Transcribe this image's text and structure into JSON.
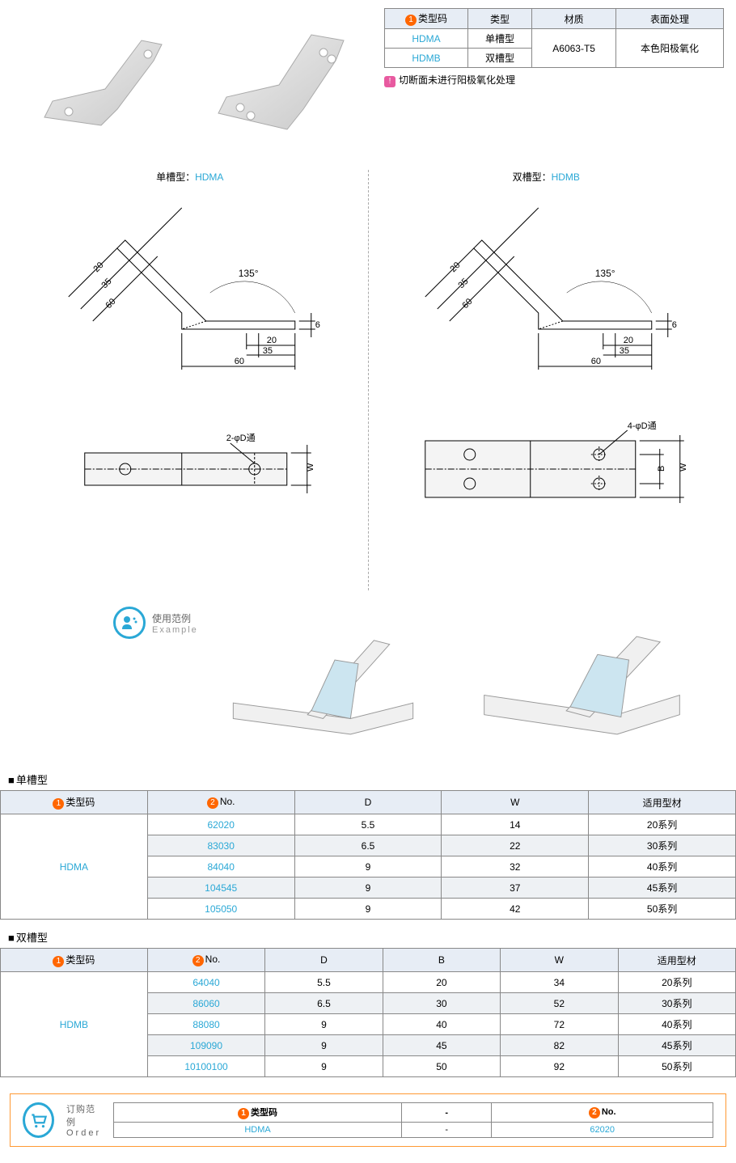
{
  "specTable": {
    "headers": [
      "类型码",
      "类型",
      "材质",
      "表面处理"
    ],
    "rows": [
      {
        "code": "HDMA",
        "type": "单槽型",
        "material": "A6063-T5",
        "surface": "本色阳极氧化"
      },
      {
        "code": "HDMB",
        "type": "双槽型"
      }
    ]
  },
  "note": "切断面未进行阳极氧化处理",
  "diagramLeft": {
    "title_prefix": "单槽型：",
    "title_code": "HDMA",
    "angle": "135°",
    "dims_angled": [
      "20",
      "35",
      "60"
    ],
    "dims_flat": [
      "20",
      "35",
      "60"
    ],
    "thickness": "6",
    "hole_label": "2-φD通",
    "width_label": "W"
  },
  "diagramRight": {
    "title_prefix": "双槽型：",
    "title_code": "HDMB",
    "angle": "135°",
    "dims_angled": [
      "20",
      "35",
      "60"
    ],
    "dims_flat": [
      "20",
      "35",
      "60"
    ],
    "thickness": "6",
    "hole_label": "4-φD通",
    "width_label": "W",
    "b_label": "B"
  },
  "example": {
    "label_cn": "使用范例",
    "label_en": "Example"
  },
  "table1": {
    "title": "单槽型",
    "headers": [
      "类型码",
      "No.",
      "D",
      "W",
      "适用型材"
    ],
    "typeCode": "HDMA",
    "rows": [
      {
        "no": "62020",
        "d": "5.5",
        "w": "14",
        "profile": "20系列",
        "highlight": false
      },
      {
        "no": "83030",
        "d": "6.5",
        "w": "22",
        "profile": "30系列",
        "highlight": true
      },
      {
        "no": "84040",
        "d": "9",
        "w": "32",
        "profile": "40系列",
        "highlight": false
      },
      {
        "no": "104545",
        "d": "9",
        "w": "37",
        "profile": "45系列",
        "highlight": true
      },
      {
        "no": "105050",
        "d": "9",
        "w": "42",
        "profile": "50系列",
        "highlight": false
      }
    ]
  },
  "table2": {
    "title": "双槽型",
    "headers": [
      "类型码",
      "No.",
      "D",
      "B",
      "W",
      "适用型材"
    ],
    "typeCode": "HDMB",
    "rows": [
      {
        "no": "64040",
        "d": "5.5",
        "b": "20",
        "w": "34",
        "profile": "20系列",
        "highlight": false
      },
      {
        "no": "86060",
        "d": "6.5",
        "b": "30",
        "w": "52",
        "profile": "30系列",
        "highlight": true
      },
      {
        "no": "88080",
        "d": "9",
        "b": "40",
        "w": "72",
        "profile": "40系列",
        "highlight": false
      },
      {
        "no": "109090",
        "d": "9",
        "b": "45",
        "w": "82",
        "profile": "45系列",
        "highlight": true
      },
      {
        "no": "10100100",
        "d": "9",
        "b": "50",
        "w": "92",
        "profile": "50系列",
        "highlight": false
      }
    ]
  },
  "order": {
    "label_cn": "订购范例",
    "label_en": "Order",
    "headers": [
      "类型码",
      "-",
      "No."
    ],
    "values": [
      "HDMA",
      "-",
      "62020"
    ]
  },
  "colors": {
    "link": "#2aa8d6",
    "header_bg": "#e7edf5",
    "orange": "#ff6600",
    "border_orange": "#ff9933",
    "pink": "#e85aa0",
    "highlight_row": "#eef1f4",
    "border": "#888888"
  }
}
